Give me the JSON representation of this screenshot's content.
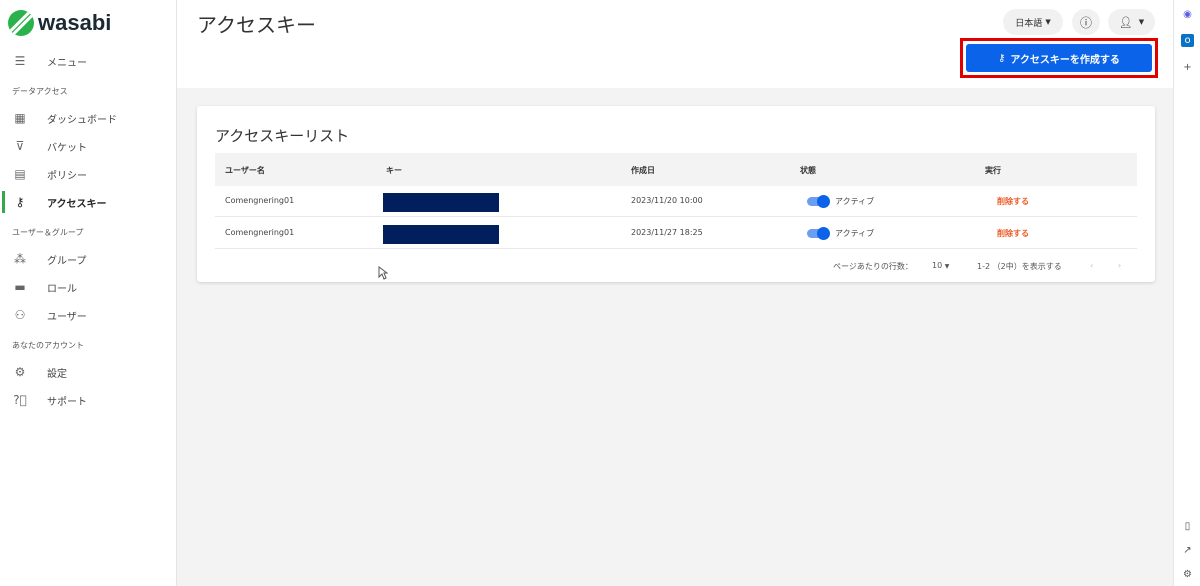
{
  "brand": {
    "name": "wasabi"
  },
  "sidebar": {
    "menu_label": "メニュー",
    "sections": [
      "データアクセス",
      "ユーザー＆グループ",
      "あなたのアカウント"
    ],
    "items": [
      {
        "label": "ダッシュボード",
        "icon": "dashboard-icon"
      },
      {
        "label": "バケット",
        "icon": "bucket-icon"
      },
      {
        "label": "ポリシー",
        "icon": "policy-icon"
      },
      {
        "label": "アクセスキー",
        "icon": "key-icon",
        "active": true
      },
      {
        "label": "グループ",
        "icon": "group-icon"
      },
      {
        "label": "ロール",
        "icon": "role-icon"
      },
      {
        "label": "ユーザー",
        "icon": "users-icon"
      },
      {
        "label": "設定",
        "icon": "gear-icon"
      },
      {
        "label": "サポート",
        "icon": "help-icon"
      }
    ]
  },
  "header": {
    "title": "アクセスキー",
    "language": "日本語",
    "create_button": "アクセスキーを作成する"
  },
  "card": {
    "title": "アクセスキーリスト",
    "columns": [
      "ユーザー名",
      "キー",
      "作成日",
      "状態",
      "実行"
    ],
    "rows": [
      {
        "user": "Comengnering01",
        "created": "2023/11/20 10:00",
        "status": "アクティブ",
        "active": true,
        "action": "削除する"
      },
      {
        "user": "Comengnering01",
        "created": "2023/11/27 18:25",
        "status": "アクティブ",
        "active": true,
        "action": "削除する"
      }
    ],
    "pagination": {
      "rows_per_page_label": "ページあたりの行数：",
      "rows_per_page": "10",
      "range": "1-2 （2中）を表示する"
    }
  },
  "colors": {
    "accent": "#0a63e8",
    "brand_green": "#2bb24c",
    "danger": "#f05a28",
    "highlight": "#e00000"
  }
}
